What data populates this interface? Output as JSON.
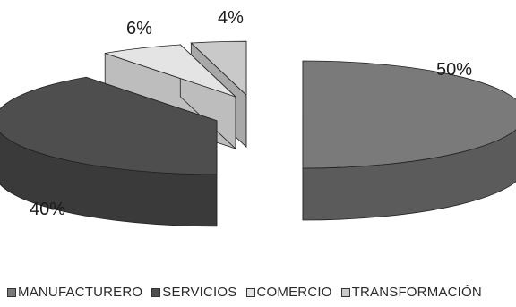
{
  "chart_data": {
    "type": "pie",
    "style": "3d-exploded",
    "slices": [
      {
        "label": "MANUFACTURERO",
        "value": 50,
        "display": "50%",
        "color": "#7a7a7a",
        "side": "#5b5b5b"
      },
      {
        "label": "SERVICIOS",
        "value": 40,
        "display": "40%",
        "color": "#4e4e4e",
        "side": "#3a3a3a"
      },
      {
        "label": "COMERCIO",
        "value": 6,
        "display": "6%",
        "color": "#e4e4e4",
        "side": "#bdbdbd"
      },
      {
        "label": "TRANSFORMACIÓN",
        "value": 4,
        "display": "4%",
        "color": "#c9c9c9",
        "side": "#a8a8a8"
      }
    ],
    "legend_position": "bottom"
  }
}
